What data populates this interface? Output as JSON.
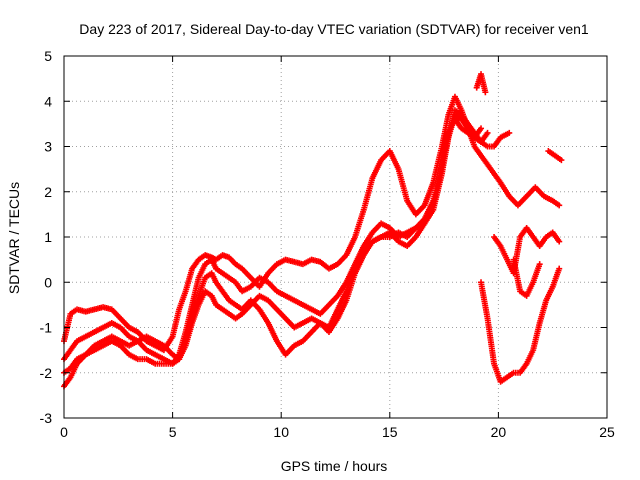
{
  "chart_data": {
    "type": "scatter",
    "title": "Day 223 of 2017, Sidereal Day-to-day VTEC variation (SDTVAR) for receiver ven1",
    "xlabel": "GPS time / hours",
    "ylabel": "SDTVAR / TECUs",
    "xlim": [
      0,
      25
    ],
    "ylim": [
      -3,
      5
    ],
    "xticks": [
      "0",
      "5",
      "10",
      "15",
      "20",
      "25"
    ],
    "yticks": [
      "-3",
      "-2",
      "-1",
      "0",
      "1",
      "2",
      "3",
      "4",
      "5"
    ],
    "grid": true,
    "marker": "+",
    "series_color": "#ff0000",
    "series": [
      {
        "x": [
          0,
          0.3,
          0.6,
          1.0,
          1.4,
          1.8,
          2.2,
          2.6,
          3.0,
          3.4,
          3.8,
          4.2,
          4.6,
          5.0,
          5.3,
          5.6,
          5.9,
          6.2,
          6.5,
          6.8,
          7.0,
          7.3,
          7.6,
          7.9,
          8.2,
          8.6,
          9.0,
          9.4,
          9.8,
          10.2,
          10.6,
          11.0,
          11.4,
          11.8,
          12.2,
          12.6,
          13.0,
          13.4,
          13.8,
          14.2,
          14.6,
          15.0,
          15.4,
          15.8,
          16.2,
          16.6,
          17.0,
          17.4,
          17.7,
          18.0,
          18.3,
          18.6,
          18.9,
          19.2,
          19.5,
          19.8,
          20.1,
          20.5,
          20.9,
          21.3,
          21.7,
          22.1,
          22.5,
          22.8
        ],
        "y": [
          -1.3,
          -0.7,
          -0.6,
          -0.65,
          -0.6,
          -0.55,
          -0.6,
          -0.8,
          -1.0,
          -1.1,
          -1.3,
          -1.4,
          -1.5,
          -1.2,
          -0.6,
          -0.2,
          0.3,
          0.5,
          0.6,
          0.55,
          0.5,
          0.6,
          0.55,
          0.4,
          0.3,
          0.1,
          -0.1,
          0.2,
          0.4,
          0.5,
          0.45,
          0.4,
          0.5,
          0.45,
          0.3,
          0.4,
          0.6,
          1.0,
          1.6,
          2.3,
          2.7,
          2.9,
          2.5,
          1.8,
          1.5,
          1.7,
          2.2,
          3.0,
          3.7,
          4.1,
          3.8,
          3.4,
          3.0,
          2.8,
          2.6,
          2.4,
          2.2,
          1.9,
          1.7,
          1.9,
          2.1,
          1.9,
          1.8,
          1.7
        ]
      },
      {
        "x": [
          0,
          0.3,
          0.6,
          1.0,
          1.4,
          1.8,
          2.2,
          2.6,
          3.0,
          3.4,
          3.8,
          4.2,
          4.6,
          5.0,
          5.3,
          5.6,
          5.9,
          6.2,
          6.5,
          6.8,
          7.0,
          7.3,
          7.6,
          7.9,
          8.2,
          8.6,
          9.0,
          9.4,
          9.8,
          10.2,
          10.6,
          11.0,
          11.4,
          11.8,
          12.2,
          12.6,
          13.0,
          13.4,
          13.8,
          14.2,
          14.6,
          15.0,
          15.4,
          15.8,
          16.2,
          16.6,
          17.0,
          17.4,
          17.7,
          18.0,
          18.3,
          18.6,
          18.9,
          19.2,
          19.5
        ],
        "y": [
          -1.7,
          -1.5,
          -1.3,
          -1.2,
          -1.1,
          -1.0,
          -0.9,
          -1.0,
          -1.2,
          -1.3,
          -1.5,
          -1.6,
          -1.7,
          -1.8,
          -1.6,
          -1.1,
          -0.5,
          0.1,
          0.4,
          0.5,
          0.3,
          0.2,
          0.1,
          0.0,
          -0.2,
          -0.1,
          0.1,
          0.0,
          -0.2,
          -0.3,
          -0.4,
          -0.5,
          -0.6,
          -0.7,
          -0.5,
          -0.3,
          0.0,
          0.4,
          0.8,
          1.1,
          1.3,
          1.2,
          1.0,
          1.1,
          1.2,
          1.3,
          1.6,
          2.4,
          3.2,
          3.7,
          3.6,
          3.4,
          3.2,
          3.1,
          3.3
        ]
      },
      {
        "x": [
          0,
          0.3,
          0.6,
          1.0,
          1.4,
          1.8,
          2.2,
          2.6,
          3.0,
          3.4,
          3.8,
          4.2,
          4.6,
          5.0,
          5.3,
          5.6,
          5.9,
          6.2,
          6.5,
          6.8,
          7.0,
          7.3,
          7.6,
          7.9,
          8.2,
          8.6,
          9.0,
          9.4,
          9.8,
          10.2,
          10.6,
          11.0,
          11.4,
          11.8,
          12.2,
          12.6,
          13.0,
          13.4,
          13.8,
          14.2,
          14.6,
          15.0,
          15.4,
          15.8,
          16.2,
          16.6,
          17.0,
          17.4,
          17.7,
          18.0,
          18.3,
          18.6,
          18.9,
          19.2
        ],
        "y": [
          -2.0,
          -1.9,
          -1.7,
          -1.6,
          -1.5,
          -1.4,
          -1.3,
          -1.4,
          -1.6,
          -1.7,
          -1.7,
          -1.8,
          -1.8,
          -1.8,
          -1.7,
          -1.3,
          -0.8,
          -0.3,
          0.1,
          0.2,
          0.0,
          -0.2,
          -0.4,
          -0.5,
          -0.6,
          -0.4,
          -0.6,
          -0.9,
          -1.3,
          -1.6,
          -1.4,
          -1.3,
          -1.1,
          -0.9,
          -1.0,
          -0.6,
          -0.2,
          0.3,
          0.7,
          0.9,
          1.0,
          1.0,
          1.1,
          1.0,
          1.2,
          1.4,
          1.8,
          2.6,
          3.3,
          3.6,
          3.4,
          3.3,
          3.2,
          3.4
        ]
      },
      {
        "x": [
          0,
          0.3,
          0.6,
          1.0,
          1.4,
          1.8,
          2.2,
          2.6,
          3.0,
          3.4,
          3.8,
          4.2,
          4.6,
          5.0,
          5.3,
          5.6,
          5.9,
          6.2,
          6.5,
          6.8,
          7.0,
          7.3,
          7.6,
          7.9,
          8.2,
          8.6,
          9.0,
          9.4,
          9.8,
          10.2,
          10.6,
          11.0,
          11.4,
          11.8,
          12.2,
          12.6,
          13.0,
          13.4,
          13.8,
          14.2,
          14.6,
          15.0,
          15.4,
          15.8,
          16.2,
          16.6,
          17.0,
          17.4,
          17.7,
          18.0,
          18.3,
          18.6,
          18.9,
          19.2,
          19.5,
          19.8,
          20.1,
          20.5
        ],
        "y": [
          -2.3,
          -2.1,
          -1.8,
          -1.6,
          -1.4,
          -1.3,
          -1.2,
          -1.3,
          -1.4,
          -1.3,
          -1.2,
          -1.3,
          -1.4,
          -1.6,
          -1.7,
          -1.4,
          -0.9,
          -0.5,
          -0.2,
          -0.3,
          -0.5,
          -0.6,
          -0.7,
          -0.8,
          -0.7,
          -0.5,
          -0.3,
          -0.4,
          -0.6,
          -0.8,
          -1.0,
          -0.9,
          -0.8,
          -0.9,
          -1.1,
          -0.8,
          -0.4,
          0.2,
          0.6,
          0.9,
          1.0,
          1.1,
          0.9,
          0.8,
          1.0,
          1.3,
          1.7,
          2.5,
          3.2,
          3.8,
          3.7,
          3.5,
          3.3,
          3.1,
          3.0,
          3.0,
          3.2,
          3.3
        ]
      },
      {
        "x": [
          19.2,
          19.5,
          19.8,
          20.1,
          20.4,
          20.7,
          21.0,
          21.3,
          21.6,
          21.9,
          22.2,
          22.5,
          22.8
        ],
        "y": [
          0.0,
          -0.8,
          -1.8,
          -2.2,
          -2.1,
          -2.0,
          -2.0,
          -1.8,
          -1.5,
          -0.9,
          -0.4,
          -0.1,
          0.3
        ]
      },
      {
        "x": [
          19.8,
          20.1,
          20.4,
          20.7,
          21.0,
          21.3,
          21.6,
          21.9,
          22.2,
          22.5,
          22.8
        ],
        "y": [
          1.0,
          0.8,
          0.5,
          0.2,
          1.0,
          1.2,
          1.0,
          0.8,
          1.0,
          1.1,
          0.9
        ]
      },
      {
        "x": [
          20.7,
          21.0,
          21.3,
          21.6,
          21.9
        ],
        "y": [
          0.5,
          -0.2,
          -0.3,
          0.0,
          0.4
        ]
      },
      {
        "x": [
          22.3,
          22.6,
          22.9
        ],
        "y": [
          2.9,
          2.8,
          2.7
        ]
      },
      {
        "x": [
          19.0,
          19.2,
          19.4
        ],
        "y": [
          4.3,
          4.6,
          4.2
        ]
      }
    ]
  }
}
